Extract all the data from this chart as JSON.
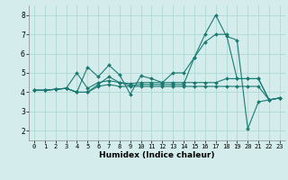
{
  "title": "",
  "xlabel": "Humidex (Indice chaleur)",
  "background_color": "#d4edec",
  "grid_color": "#add8d5",
  "line_color": "#1a7a72",
  "xlim": [
    -0.5,
    23.5
  ],
  "ylim": [
    1.5,
    8.5
  ],
  "yticks": [
    2,
    3,
    4,
    5,
    6,
    7,
    8
  ],
  "xticks": [
    0,
    1,
    2,
    3,
    4,
    5,
    6,
    7,
    8,
    9,
    10,
    11,
    12,
    13,
    14,
    15,
    16,
    17,
    18,
    19,
    20,
    21,
    22,
    23
  ],
  "lines": [
    [
      4.1,
      4.1,
      4.15,
      4.2,
      4.0,
      5.3,
      4.8,
      5.4,
      4.9,
      3.9,
      4.85,
      4.7,
      4.5,
      5.0,
      5.0,
      5.8,
      6.6,
      7.0,
      7.0,
      4.7,
      4.7,
      4.7,
      3.6,
      3.7
    ],
    [
      4.1,
      4.1,
      4.15,
      4.2,
      5.0,
      4.2,
      4.5,
      4.6,
      4.5,
      4.45,
      4.5,
      4.5,
      4.5,
      4.5,
      4.5,
      4.5,
      4.5,
      4.5,
      4.7,
      4.7,
      4.7,
      4.7,
      3.6,
      3.7
    ],
    [
      4.1,
      4.1,
      4.15,
      4.2,
      4.0,
      4.0,
      4.4,
      4.8,
      4.5,
      4.35,
      4.4,
      4.4,
      4.4,
      4.4,
      4.4,
      5.8,
      7.0,
      8.0,
      6.9,
      6.7,
      2.1,
      3.5,
      3.6,
      3.7
    ],
    [
      4.1,
      4.1,
      4.15,
      4.2,
      4.0,
      4.0,
      4.3,
      4.4,
      4.3,
      4.3,
      4.3,
      4.3,
      4.3,
      4.3,
      4.3,
      4.3,
      4.3,
      4.3,
      4.3,
      4.3,
      4.3,
      4.3,
      3.6,
      3.7
    ]
  ],
  "tick_fontsize": 5.0,
  "xlabel_fontsize": 6.5
}
